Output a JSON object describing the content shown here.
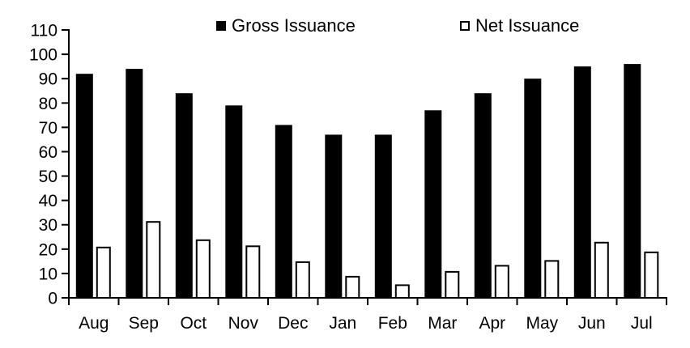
{
  "chart_data": {
    "type": "bar",
    "categories": [
      "Aug",
      "Sep",
      "Oct",
      "Nov",
      "Dec",
      "Jan",
      "Feb",
      "Mar",
      "Apr",
      "May",
      "Jun",
      "Jul"
    ],
    "series": [
      {
        "name": "Gross Issuance",
        "values": [
          92,
          94,
          84,
          79,
          71,
          67,
          67,
          77,
          84,
          90,
          95,
          96
        ],
        "fill": "#000000",
        "stroke": "#000000"
      },
      {
        "name": "Net Issuance",
        "values": [
          21,
          31.5,
          24,
          21.5,
          15,
          9,
          5.5,
          11,
          13.5,
          15.5,
          23,
          19
        ],
        "fill": "#ffffff",
        "stroke": "#000000"
      }
    ],
    "title": "",
    "xlabel": "",
    "ylabel": "",
    "ylim": [
      0,
      110
    ],
    "ytick_step": 10,
    "y_tick_labels": [
      "0",
      "10",
      "20",
      "30",
      "40",
      "50",
      "60",
      "70",
      "80",
      "90",
      "100",
      "110"
    ],
    "grid": false,
    "legend_position": "top",
    "axis_color": "#000000",
    "background_color": "#ffffff"
  }
}
